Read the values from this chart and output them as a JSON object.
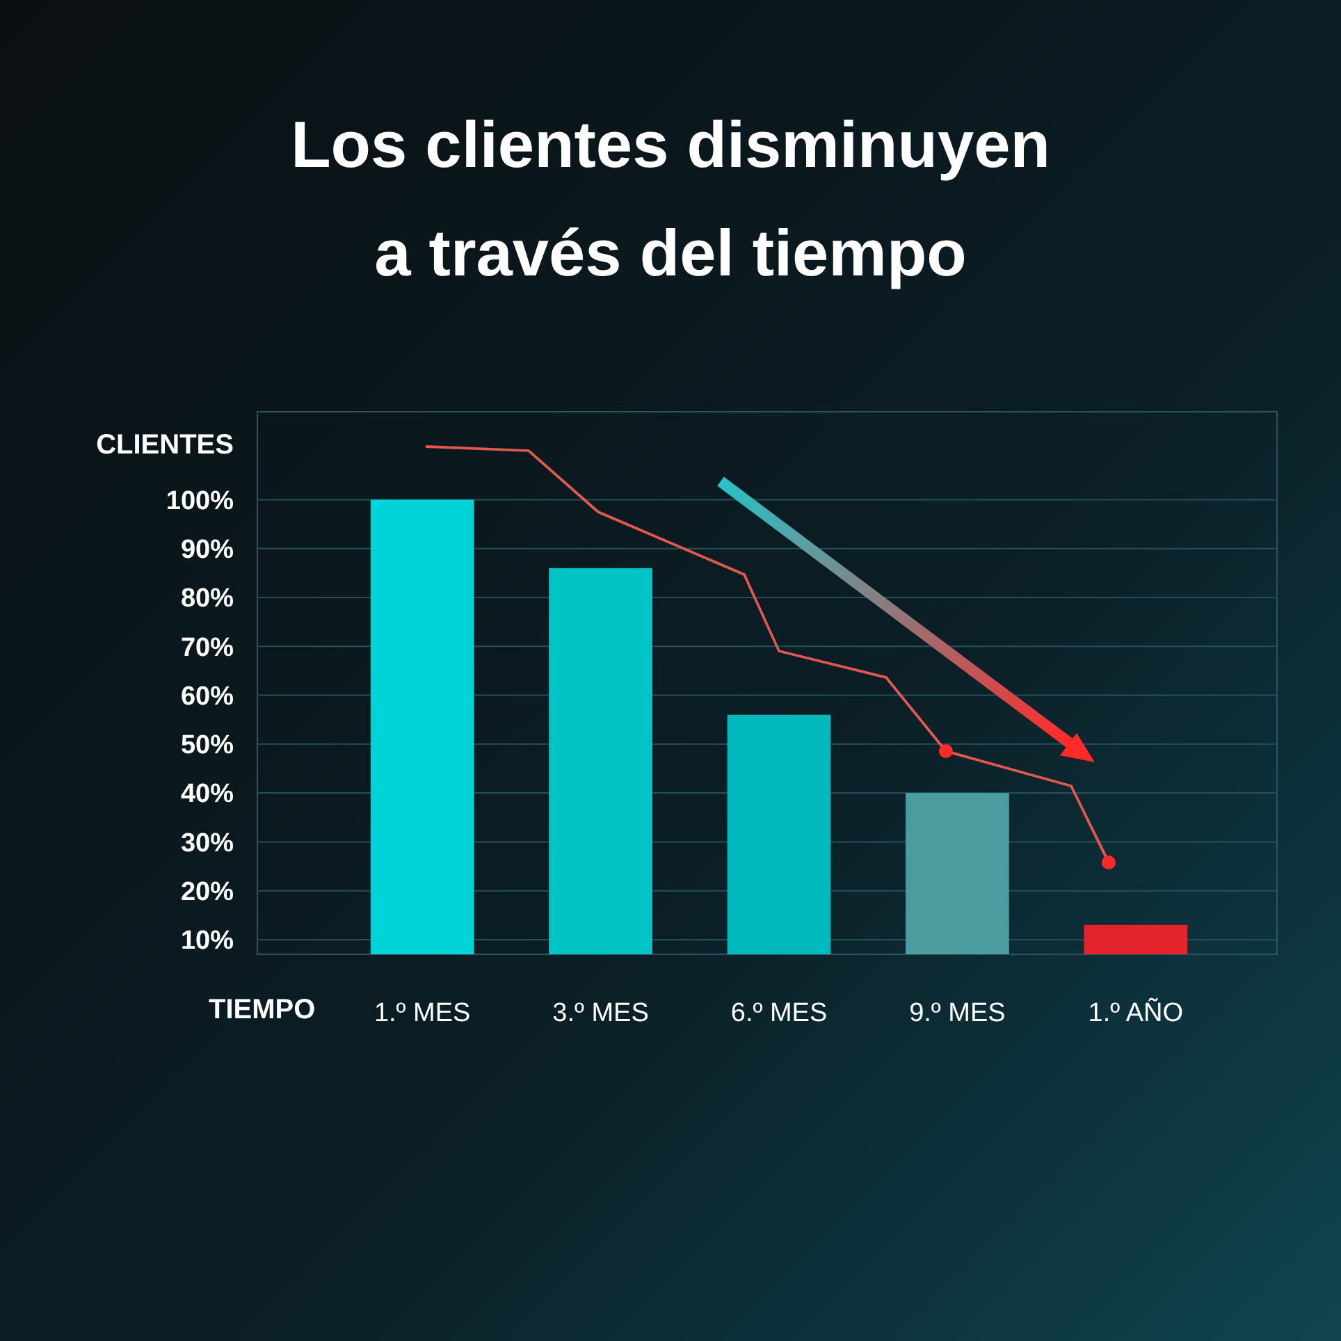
{
  "chart_data": {
    "type": "bar",
    "title": "Los clientes disminuyen a través del tiempo",
    "xlabel": "TIEMPO",
    "ylabel": "CLIENTES",
    "categories": [
      "1.º MES",
      "3.º MES",
      "6.º MES",
      "9.º MES",
      "1.º AÑO"
    ],
    "values": [
      100,
      86,
      56,
      40,
      13
    ],
    "colors": [
      "#00d4d8",
      "#00c4c6",
      "#00b9bc",
      "#4a9c9e",
      "#e3242c"
    ],
    "ylim": [
      7,
      118
    ],
    "yticks": [
      {
        "value": 10,
        "label": "10%"
      },
      {
        "value": 20,
        "label": "20%"
      },
      {
        "value": 30,
        "label": "30%"
      },
      {
        "value": 40,
        "label": "40%"
      },
      {
        "value": 50,
        "label": "50%"
      },
      {
        "value": 60,
        "label": "60%"
      },
      {
        "value": 70,
        "label": "70%"
      },
      {
        "value": 80,
        "label": "80%"
      },
      {
        "value": 90,
        "label": "90%"
      },
      {
        "value": 100,
        "label": "100%"
      }
    ],
    "grid": "y"
  }
}
